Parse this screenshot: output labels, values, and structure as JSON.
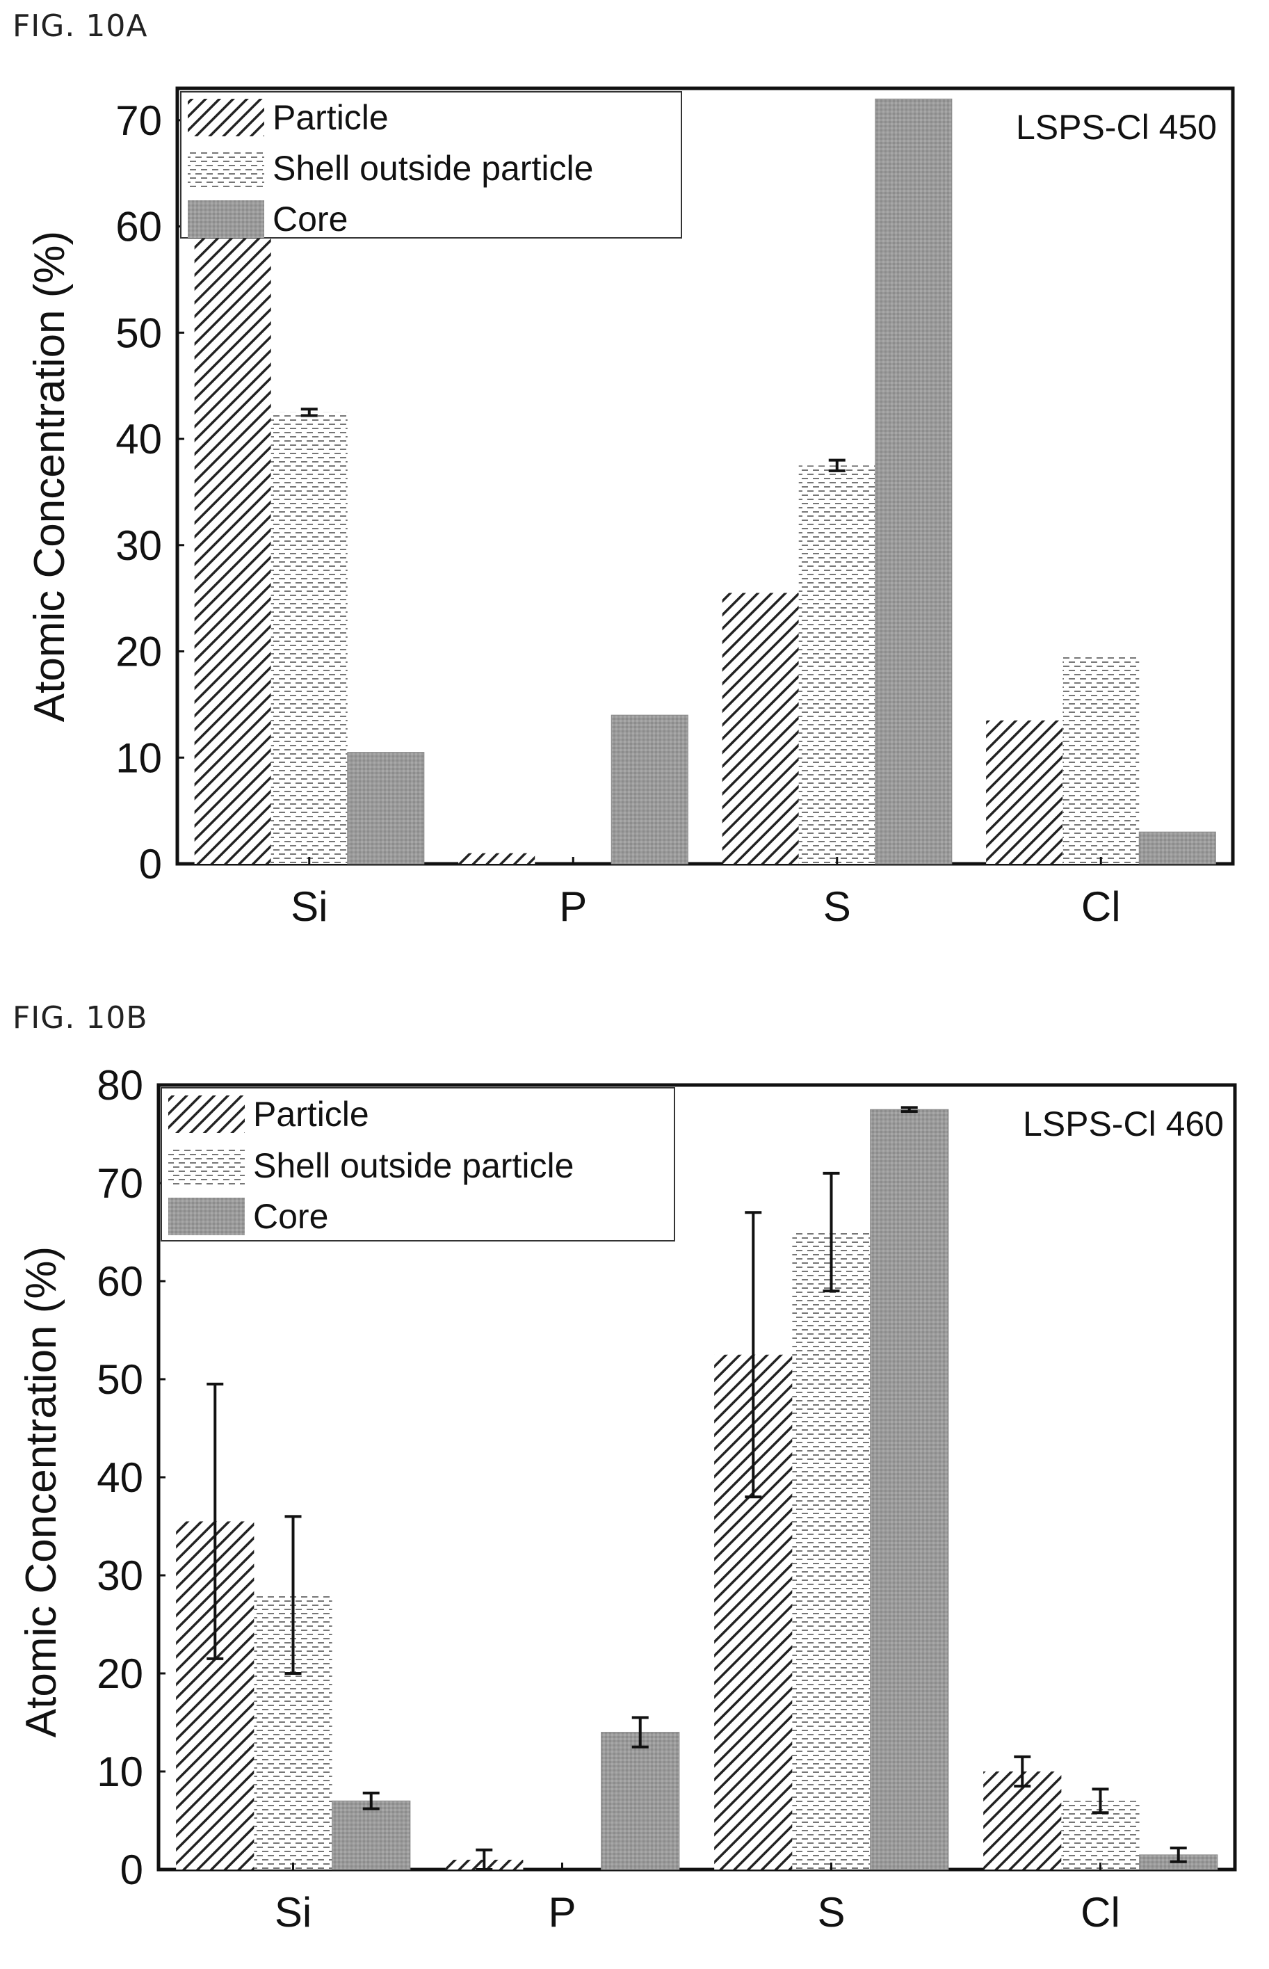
{
  "figures": [
    {
      "label": "FIG. 10A"
    },
    {
      "label": "FIG. 10B"
    }
  ],
  "chart_data": [
    {
      "type": "bar",
      "panel_label": "LSPS-Cl 450",
      "ylabel": "Atomic Concentration (%)",
      "xlabel": "",
      "ylim": [
        0,
        73
      ],
      "yticks": [
        0,
        10,
        20,
        30,
        40,
        50,
        60,
        70
      ],
      "categories": [
        "Si",
        "P",
        "S",
        "Cl"
      ],
      "legend_position": "top-left",
      "series": [
        {
          "name": "Particle",
          "pattern": "diagonal-hatch",
          "values": [
            60,
            1,
            25.5,
            13.5
          ],
          "errors": [
            null,
            null,
            null,
            null
          ]
        },
        {
          "name": "Shell outside particle",
          "pattern": "horizontal-dash",
          "values": [
            42.5,
            0,
            37.5,
            19.5
          ],
          "errors": [
            0.3,
            null,
            0.5,
            null
          ]
        },
        {
          "name": "Core",
          "pattern": "gray-fill",
          "values": [
            10.5,
            14,
            72,
            3
          ],
          "errors": [
            null,
            null,
            null,
            null
          ]
        }
      ]
    },
    {
      "type": "bar",
      "panel_label": "LSPS-Cl 460",
      "ylabel": "Atomic Concentration (%)",
      "xlabel": "",
      "ylim": [
        0,
        80
      ],
      "yticks": [
        0,
        10,
        20,
        30,
        40,
        50,
        60,
        70,
        80
      ],
      "categories": [
        "Si",
        "P",
        "S",
        "Cl"
      ],
      "legend_position": "top-left",
      "series": [
        {
          "name": "Particle",
          "pattern": "diagonal-hatch",
          "values": [
            35.5,
            1,
            52.5,
            10
          ],
          "errors": [
            14,
            1,
            14.5,
            1.5
          ]
        },
        {
          "name": "Shell outside particle",
          "pattern": "horizontal-dash",
          "values": [
            28,
            0,
            65,
            7
          ],
          "errors": [
            8,
            null,
            6,
            1.2
          ]
        },
        {
          "name": "Core",
          "pattern": "gray-fill",
          "values": [
            7,
            14,
            77.5,
            1.5
          ],
          "errors": [
            0.8,
            1.5,
            0.2,
            0.7
          ]
        }
      ]
    }
  ]
}
